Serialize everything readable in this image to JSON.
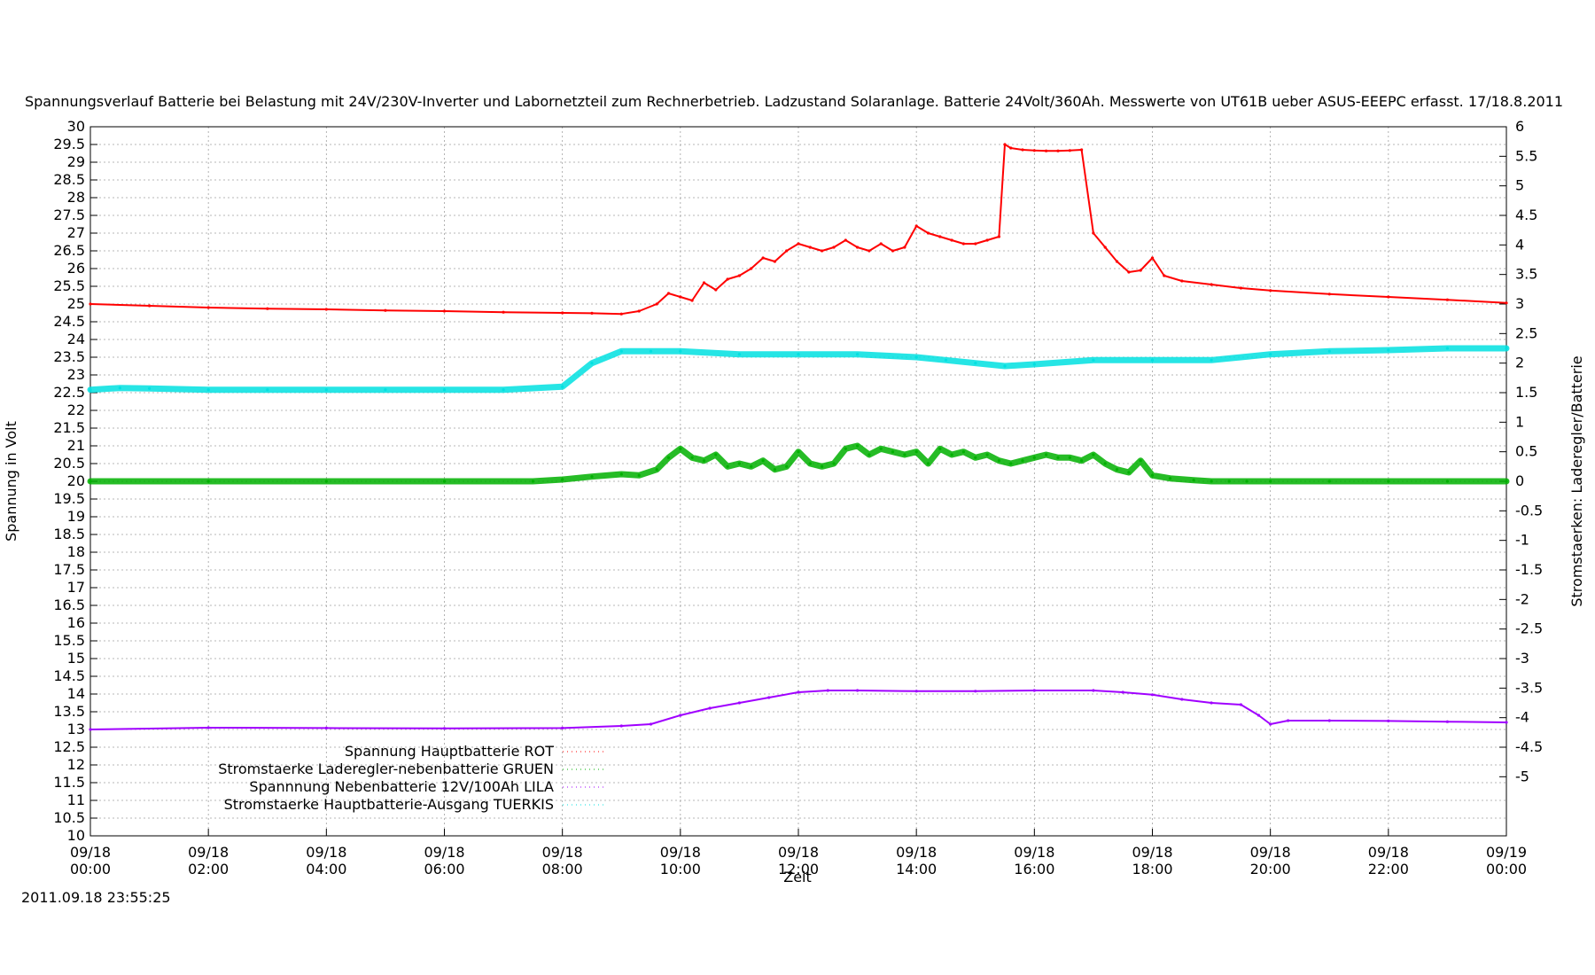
{
  "chart_data": {
    "type": "scatter",
    "title": "Spannungsverlauf Batterie bei Belastung mit 24V/230V-Inverter und Labornetzteil zum Rechnerbetrieb. Ladzustand Solaranlage. Batterie 24Volt/360Ah. Messwerte von UT61B ueber ASUS-EEEPC erfasst. 17/18.8.2011",
    "xlabel": "Zeit",
    "ylabel": "Spannung in Volt",
    "y2label": "Stromstaerken: Laderegler/Batterie",
    "timestamp": "2011.09.18 23:55:25",
    "grid": true,
    "legend_position": "bottom-left",
    "xlim_hours": [
      0,
      24
    ],
    "ylim": [
      10,
      30
    ],
    "y2lim": [
      -6,
      6
    ],
    "x_ticks": [
      {
        "date": "09/18",
        "time": "00:00"
      },
      {
        "date": "09/18",
        "time": "02:00"
      },
      {
        "date": "09/18",
        "time": "04:00"
      },
      {
        "date": "09/18",
        "time": "06:00"
      },
      {
        "date": "09/18",
        "time": "08:00"
      },
      {
        "date": "09/18",
        "time": "10:00"
      },
      {
        "date": "09/18",
        "time": "12:00"
      },
      {
        "date": "09/18",
        "time": "14:00"
      },
      {
        "date": "09/18",
        "time": "16:00"
      },
      {
        "date": "09/18",
        "time": "18:00"
      },
      {
        "date": "09/18",
        "time": "20:00"
      },
      {
        "date": "09/18",
        "time": "22:00"
      },
      {
        "date": "09/19",
        "time": "00:00"
      }
    ],
    "y_ticks": [
      "10",
      "10.5",
      "11",
      "11.5",
      "12",
      "12.5",
      "13",
      "13.5",
      "14",
      "14.5",
      "15",
      "15.5",
      "16",
      "16.5",
      "17",
      "17.5",
      "18",
      "18.5",
      "19",
      "19.5",
      "20",
      "20.5",
      "21",
      "21.5",
      "22",
      "22.5",
      "23",
      "23.5",
      "24",
      "24.5",
      "25",
      "25.5",
      "26",
      "26.5",
      "27",
      "27.5",
      "28",
      "28.5",
      "29",
      "29.5",
      "30"
    ],
    "y2_ticks": [
      "-5",
      "-4.5",
      "-4",
      "-3.5",
      "-3",
      "-2.5",
      "-2",
      "-1.5",
      "-1",
      "-0.5",
      "0",
      "0.5",
      "1",
      "1.5",
      "2",
      "2.5",
      "3",
      "3.5",
      "4",
      "4.5",
      "5",
      "5.5",
      "6"
    ],
    "series": [
      {
        "name": "Spannung Hauptbatterie ROT",
        "color": "#ff0000",
        "axis": "y",
        "x": [
          0,
          1,
          2,
          3,
          4,
          5,
          6,
          7,
          8,
          8.5,
          9,
          9.3,
          9.6,
          9.8,
          10,
          10.2,
          10.4,
          10.6,
          10.8,
          11,
          11.2,
          11.4,
          11.6,
          11.8,
          12,
          12.2,
          12.4,
          12.6,
          12.8,
          13,
          13.2,
          13.4,
          13.6,
          13.8,
          14,
          14.2,
          14.4,
          14.6,
          14.8,
          15,
          15.2,
          15.4,
          15.5,
          15.6,
          15.8,
          16,
          16.2,
          16.4,
          16.6,
          16.8,
          17,
          17.2,
          17.4,
          17.6,
          17.8,
          18,
          18.2,
          18.5,
          19,
          19.5,
          20,
          21,
          22,
          23,
          24
        ],
        "y": [
          25.0,
          24.95,
          24.9,
          24.87,
          24.85,
          24.82,
          24.8,
          24.77,
          24.75,
          24.74,
          24.72,
          24.8,
          25.0,
          25.3,
          25.2,
          25.1,
          25.6,
          25.4,
          25.7,
          25.8,
          26.0,
          26.3,
          26.2,
          26.5,
          26.7,
          26.6,
          26.5,
          26.6,
          26.8,
          26.6,
          26.5,
          26.7,
          26.5,
          26.6,
          27.2,
          27.0,
          26.9,
          26.8,
          26.7,
          26.7,
          26.8,
          26.9,
          29.5,
          29.4,
          29.35,
          29.33,
          29.32,
          29.32,
          29.33,
          29.35,
          27.0,
          26.6,
          26.2,
          25.9,
          25.95,
          26.3,
          25.8,
          25.65,
          25.55,
          25.45,
          25.38,
          25.28,
          25.2,
          25.12,
          25.03
        ]
      },
      {
        "name": "Stromstaerke Laderegler-nebenbatterie GRUEN",
        "color": "#00b000",
        "axis": "y2",
        "x": [
          0,
          2,
          4,
          6,
          7.5,
          8,
          8.5,
          9,
          9.3,
          9.6,
          9.8,
          10,
          10.2,
          10.4,
          10.6,
          10.8,
          11,
          11.2,
          11.4,
          11.6,
          11.8,
          12,
          12.2,
          12.4,
          12.6,
          12.8,
          13,
          13.2,
          13.4,
          13.6,
          13.8,
          14,
          14.2,
          14.4,
          14.6,
          14.8,
          15,
          15.2,
          15.4,
          15.6,
          15.8,
          16,
          16.2,
          16.4,
          16.6,
          16.8,
          17,
          17.2,
          17.4,
          17.6,
          17.8,
          18,
          18.3,
          18.7,
          19,
          19.3,
          19.6,
          20,
          21,
          22,
          23,
          24
        ],
        "y": [
          0,
          0,
          0,
          0,
          0,
          0.03,
          0.08,
          0.12,
          0.1,
          0.2,
          0.4,
          0.55,
          0.4,
          0.35,
          0.45,
          0.25,
          0.3,
          0.25,
          0.35,
          0.2,
          0.25,
          0.5,
          0.3,
          0.25,
          0.3,
          0.55,
          0.6,
          0.45,
          0.55,
          0.5,
          0.45,
          0.5,
          0.3,
          0.55,
          0.45,
          0.5,
          0.4,
          0.45,
          0.35,
          0.3,
          0.35,
          0.4,
          0.45,
          0.4,
          0.4,
          0.35,
          0.45,
          0.3,
          0.2,
          0.15,
          0.35,
          0.1,
          0.05,
          0.02,
          0,
          0,
          0,
          0,
          0,
          0,
          0,
          0
        ]
      },
      {
        "name": "Spannnung Nebenbatterie 12V/100Ah LILA",
        "color": "#a000ff",
        "axis": "y",
        "x": [
          0,
          2,
          4,
          6,
          8,
          9,
          9.5,
          10,
          10.5,
          11,
          11.5,
          12,
          12.5,
          13,
          14,
          15,
          16,
          17,
          17.5,
          18,
          18.5,
          19,
          19.5,
          19.8,
          20,
          20.3,
          21,
          22,
          23,
          24
        ],
        "y": [
          13.0,
          13.05,
          13.04,
          13.03,
          13.04,
          13.1,
          13.15,
          13.4,
          13.6,
          13.75,
          13.9,
          14.05,
          14.1,
          14.1,
          14.08,
          14.08,
          14.1,
          14.1,
          14.05,
          13.98,
          13.85,
          13.75,
          13.7,
          13.4,
          13.15,
          13.25,
          13.25,
          13.24,
          13.22,
          13.2
        ]
      },
      {
        "name": "Stromstaerke Hauptbatterie-Ausgang TUERKIS",
        "color": "#00e0e0",
        "axis": "y2",
        "x": [
          0,
          0.5,
          1,
          2,
          3,
          4,
          5,
          6,
          7,
          8,
          8.5,
          9,
          9.5,
          10,
          11,
          12,
          13,
          14,
          14.5,
          15,
          15.5,
          16,
          17,
          18,
          19,
          20,
          21,
          22,
          23,
          24
        ],
        "y": [
          1.55,
          1.58,
          1.57,
          1.55,
          1.55,
          1.55,
          1.55,
          1.55,
          1.55,
          1.6,
          2.0,
          2.2,
          2.2,
          2.2,
          2.15,
          2.15,
          2.15,
          2.1,
          2.05,
          2.0,
          1.95,
          1.98,
          2.05,
          2.05,
          2.05,
          2.15,
          2.2,
          2.22,
          2.25,
          2.25
        ]
      }
    ]
  }
}
